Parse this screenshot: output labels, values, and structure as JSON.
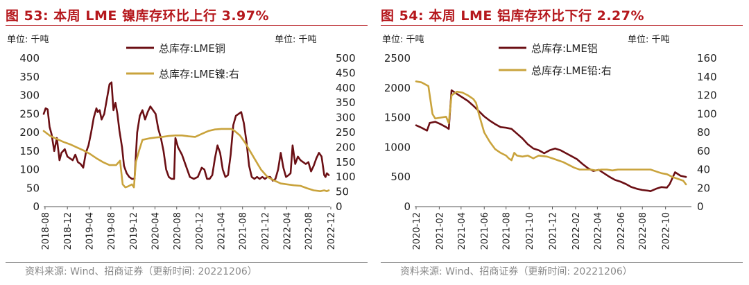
{
  "colors": {
    "primary_series": "#6b0f14",
    "secondary_series": "#c9a33c",
    "title": "#b5171c"
  },
  "chart_data": [
    {
      "type": "line",
      "title": "图 53:  本周 LME 镍库存环比上行 3.97%",
      "unit_left": "单位:  千吨",
      "unit_right": "单位:  千吨",
      "source": "资料来源:  Wind、招商证券（更新时间: 20221206）",
      "x_range": [
        2018.6,
        2022.95
      ],
      "x_ticks": [
        {
          "v": 2018.62,
          "label": "2018-08"
        },
        {
          "v": 2018.96,
          "label": "2018-12"
        },
        {
          "v": 2019.29,
          "label": "2019-04"
        },
        {
          "v": 2019.62,
          "label": "2019-08"
        },
        {
          "v": 2019.96,
          "label": "2019-12"
        },
        {
          "v": 2020.29,
          "label": "2020-04"
        },
        {
          "v": 2020.62,
          "label": "2020-08"
        },
        {
          "v": 2020.96,
          "label": "2020-12"
        },
        {
          "v": 2021.29,
          "label": "2021-04"
        },
        {
          "v": 2021.62,
          "label": "2021-08"
        },
        {
          "v": 2021.96,
          "label": "2021-12"
        },
        {
          "v": 2022.29,
          "label": "2022-04"
        },
        {
          "v": 2022.62,
          "label": "2022-08"
        },
        {
          "v": 2022.96,
          "label": "2022-12"
        }
      ],
      "y_left": {
        "min": 0,
        "max": 400,
        "ticks": [
          0,
          50,
          100,
          150,
          200,
          250,
          300,
          350,
          400
        ]
      },
      "y_right": {
        "min": 0,
        "max": 500,
        "ticks": [
          0,
          50,
          100,
          150,
          200,
          250,
          300,
          350,
          400,
          450,
          500
        ]
      },
      "series": [
        {
          "name": "总库存:LME铜",
          "axis": "left",
          "role": "primary",
          "x": [
            2018.6,
            2018.63,
            2018.66,
            2018.69,
            2018.72,
            2018.76,
            2018.8,
            2018.84,
            2018.87,
            2018.92,
            2018.96,
            2019.0,
            2019.04,
            2019.08,
            2019.12,
            2019.16,
            2019.2,
            2019.24,
            2019.28,
            2019.32,
            2019.36,
            2019.4,
            2019.42,
            2019.45,
            2019.48,
            2019.52,
            2019.56,
            2019.6,
            2019.63,
            2019.66,
            2019.69,
            2019.72,
            2019.75,
            2019.79,
            2019.82,
            2019.86,
            2019.9,
            2019.94,
            2019.98,
            2020.02,
            2020.06,
            2020.1,
            2020.14,
            2020.18,
            2020.22,
            2020.26,
            2020.3,
            2020.34,
            2020.38,
            2020.42,
            2020.46,
            2020.5,
            2020.54,
            2020.58,
            2020.6,
            2020.64,
            2020.7,
            2020.76,
            2020.82,
            2020.88,
            2020.94,
            2021.0,
            2021.04,
            2021.08,
            2021.12,
            2021.16,
            2021.2,
            2021.24,
            2021.28,
            2021.32,
            2021.36,
            2021.4,
            2021.44,
            2021.48,
            2021.52,
            2021.56,
            2021.6,
            2021.64,
            2021.68,
            2021.72,
            2021.76,
            2021.8,
            2021.84,
            2021.88,
            2021.92,
            2021.96,
            2022.0,
            2022.04,
            2022.08,
            2022.12,
            2022.16,
            2022.2,
            2022.24,
            2022.28,
            2022.32,
            2022.35,
            2022.38,
            2022.42,
            2022.46,
            2022.5,
            2022.54,
            2022.58,
            2022.62,
            2022.66,
            2022.7,
            2022.74,
            2022.78,
            2022.82,
            2022.86,
            2022.88,
            2022.9,
            2022.93
          ],
          "y": [
            250,
            265,
            262,
            215,
            195,
            150,
            185,
            125,
            145,
            155,
            135,
            130,
            125,
            140,
            120,
            115,
            105,
            145,
            165,
            200,
            240,
            265,
            255,
            260,
            235,
            250,
            290,
            330,
            335,
            260,
            280,
            250,
            205,
            160,
            110,
            90,
            80,
            75,
            75,
            200,
            245,
            260,
            235,
            255,
            270,
            260,
            250,
            210,
            185,
            150,
            100,
            80,
            75,
            75,
            185,
            160,
            140,
            110,
            80,
            75,
            80,
            105,
            100,
            75,
            75,
            85,
            130,
            165,
            145,
            100,
            80,
            85,
            140,
            220,
            245,
            250,
            255,
            225,
            175,
            110,
            80,
            75,
            80,
            75,
            80,
            75,
            80,
            80,
            70,
            75,
            100,
            145,
            105,
            80,
            85,
            90,
            165,
            115,
            135,
            125,
            120,
            115,
            120,
            95,
            110,
            130,
            145,
            135,
            85,
            80,
            90,
            85
          ]
        },
        {
          "name": "总库存:LME镍:右",
          "axis": "right",
          "role": "secondary",
          "x": [
            2018.6,
            2018.7,
            2018.8,
            2018.9,
            2019.0,
            2019.1,
            2019.2,
            2019.3,
            2019.4,
            2019.5,
            2019.6,
            2019.7,
            2019.76,
            2019.8,
            2019.84,
            2019.88,
            2019.94,
            2019.97,
            2020.0,
            2020.05,
            2020.1,
            2020.2,
            2020.3,
            2020.4,
            2020.5,
            2020.6,
            2020.7,
            2020.8,
            2020.9,
            2021.0,
            2021.1,
            2021.2,
            2021.3,
            2021.4,
            2021.45,
            2021.5,
            2021.58,
            2021.66,
            2021.74,
            2021.82,
            2021.9,
            2022.0,
            2022.1,
            2022.2,
            2022.3,
            2022.4,
            2022.5,
            2022.6,
            2022.7,
            2022.8,
            2022.86,
            2022.9,
            2022.93
          ],
          "y": [
            255,
            238,
            228,
            218,
            210,
            200,
            190,
            178,
            163,
            150,
            140,
            140,
            155,
            75,
            65,
            68,
            75,
            65,
            150,
            190,
            225,
            230,
            233,
            235,
            238,
            240,
            240,
            237,
            235,
            245,
            255,
            260,
            262,
            262,
            262,
            255,
            240,
            215,
            185,
            155,
            125,
            100,
            88,
            78,
            75,
            72,
            70,
            62,
            55,
            52,
            55,
            52,
            55
          ]
        }
      ]
    },
    {
      "type": "line",
      "title": "图 54:  本周 LME 铝库存环比下行 2.27%",
      "unit_left": "单位:  千吨",
      "unit_right": "单位:  千吨",
      "source": "资料来源:  Wind、招商证券（更新时间: 20221206）",
      "x_range": [
        2020.95,
        2022.98
      ],
      "x_ticks": [
        {
          "v": 2020.96,
          "label": "2020-12"
        },
        {
          "v": 2021.13,
          "label": "2021-02"
        },
        {
          "v": 2021.29,
          "label": "2021-04"
        },
        {
          "v": 2021.46,
          "label": "2021-06"
        },
        {
          "v": 2021.62,
          "label": "2021-08"
        },
        {
          "v": 2021.79,
          "label": "2021-10"
        },
        {
          "v": 2021.96,
          "label": "2021-12"
        },
        {
          "v": 2022.13,
          "label": "2022-02"
        },
        {
          "v": 2022.29,
          "label": "2022-04"
        },
        {
          "v": 2022.46,
          "label": "2022-06"
        },
        {
          "v": 2022.62,
          "label": "2022-08"
        },
        {
          "v": 2022.79,
          "label": "2022-10"
        }
      ],
      "y_left": {
        "min": 0,
        "max": 2500,
        "ticks": [
          0,
          500,
          1000,
          1500,
          2000,
          2500
        ]
      },
      "y_right": {
        "min": 0,
        "max": 160,
        "ticks": [
          0,
          20,
          40,
          60,
          80,
          100,
          120,
          140,
          160
        ]
      },
      "series": [
        {
          "name": "总库存:LME铝",
          "axis": "left",
          "role": "primary",
          "x": [
            2020.96,
            2021.0,
            2021.04,
            2021.06,
            2021.1,
            2021.14,
            2021.18,
            2021.2,
            2021.22,
            2021.26,
            2021.3,
            2021.34,
            2021.38,
            2021.42,
            2021.46,
            2021.5,
            2021.54,
            2021.58,
            2021.62,
            2021.66,
            2021.7,
            2021.74,
            2021.78,
            2021.82,
            2021.86,
            2021.9,
            2021.94,
            2021.98,
            2022.02,
            2022.06,
            2022.1,
            2022.14,
            2022.18,
            2022.22,
            2022.26,
            2022.3,
            2022.34,
            2022.38,
            2022.42,
            2022.46,
            2022.5,
            2022.54,
            2022.58,
            2022.62,
            2022.66,
            2022.68,
            2022.72,
            2022.76,
            2022.8,
            2022.82,
            2022.86,
            2022.9,
            2022.94
          ],
          "y": [
            1370,
            1330,
            1280,
            1410,
            1430,
            1390,
            1340,
            1310,
            1960,
            1900,
            1840,
            1780,
            1700,
            1610,
            1520,
            1450,
            1390,
            1340,
            1330,
            1310,
            1230,
            1150,
            1050,
            980,
            950,
            900,
            950,
            980,
            950,
            900,
            850,
            800,
            720,
            650,
            600,
            620,
            560,
            500,
            450,
            420,
            380,
            330,
            300,
            280,
            270,
            260,
            300,
            330,
            320,
            380,
            580,
            520,
            500
          ]
        },
        {
          "name": "总库存:LME铅:右",
          "axis": "right",
          "role": "secondary",
          "x": [
            2020.96,
            2021.0,
            2021.05,
            2021.08,
            2021.1,
            2021.14,
            2021.18,
            2021.2,
            2021.22,
            2021.26,
            2021.3,
            2021.34,
            2021.38,
            2021.4,
            2021.42,
            2021.46,
            2021.5,
            2021.54,
            2021.58,
            2021.62,
            2021.64,
            2021.66,
            2021.68,
            2021.7,
            2021.74,
            2021.78,
            2021.82,
            2021.86,
            2021.92,
            2021.96,
            2022.0,
            2022.04,
            2022.08,
            2022.12,
            2022.16,
            2022.2,
            2022.24,
            2022.28,
            2022.32,
            2022.36,
            2022.4,
            2022.44,
            2022.48,
            2022.52,
            2022.56,
            2022.6,
            2022.64,
            2022.68,
            2022.72,
            2022.76,
            2022.8,
            2022.84,
            2022.88,
            2022.92,
            2022.94
          ],
          "y": [
            135,
            134,
            130,
            100,
            95,
            96,
            97,
            90,
            120,
            124,
            123,
            120,
            116,
            112,
            100,
            80,
            70,
            62,
            58,
            55,
            52,
            50,
            58,
            55,
            54,
            55,
            52,
            55,
            54,
            52,
            50,
            48,
            45,
            42,
            40,
            40,
            40,
            39,
            40,
            40,
            39,
            40,
            40,
            40,
            40,
            40,
            40,
            40,
            38,
            36,
            35,
            32,
            30,
            28,
            24
          ]
        }
      ]
    }
  ]
}
